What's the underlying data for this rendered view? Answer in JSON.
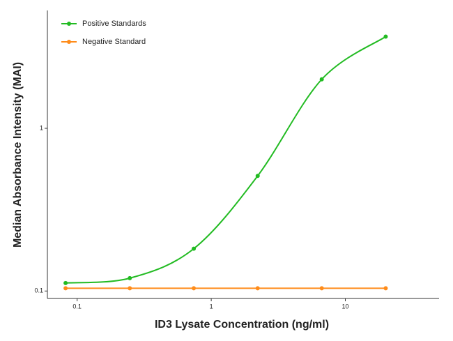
{
  "chart_data": {
    "type": "line",
    "x_label": "ID3 Lysate Concentration (ng/ml)",
    "y_label": "Median Absorbance Intensity (MAI)",
    "x": [
      0.082,
      0.247,
      0.741,
      2.22,
      6.67,
      20
    ],
    "series": [
      {
        "name": "Positive Standards",
        "color": "#22bb22",
        "values": [
          0.112,
          0.12,
          0.182,
          0.51,
          2.0,
          3.66
        ]
      },
      {
        "name": "Negative Standard",
        "color": "#ff8c1a",
        "values": [
          0.104,
          0.104,
          0.104,
          0.104,
          0.104,
          0.104
        ]
      }
    ],
    "xlim": [
      0.06,
      50
    ],
    "ylim": [
      0.09,
      5.3
    ],
    "xticks": [
      0.1,
      1,
      10
    ],
    "yticks": [
      0.1,
      1
    ],
    "x_scale": "log",
    "y_scale": "log",
    "legend": "upper-left"
  }
}
